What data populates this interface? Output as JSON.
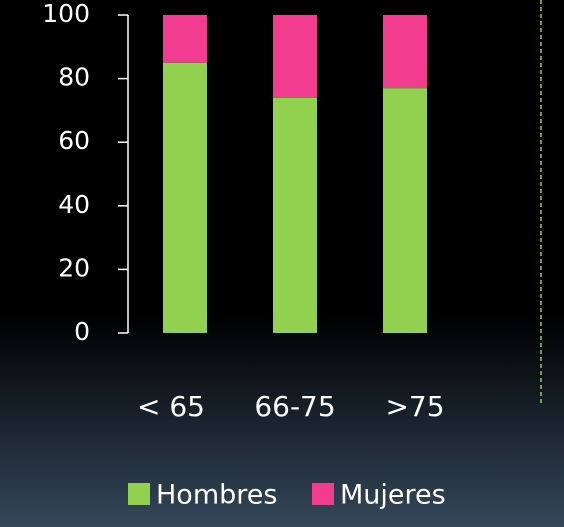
{
  "chart_data": {
    "type": "stacked_bar",
    "categories": [
      "< 65",
      "66-75",
      ">75"
    ],
    "series": [
      {
        "name": "Hombres",
        "color": "#92d050",
        "values": [
          85,
          74,
          77
        ]
      },
      {
        "name": "Mujeres",
        "color": "#f23c8f",
        "values": [
          15,
          26,
          23
        ]
      }
    ],
    "ylim": [
      0,
      100
    ],
    "yticks": [
      0,
      20,
      40,
      60,
      80,
      100
    ],
    "legend": "bottom"
  }
}
